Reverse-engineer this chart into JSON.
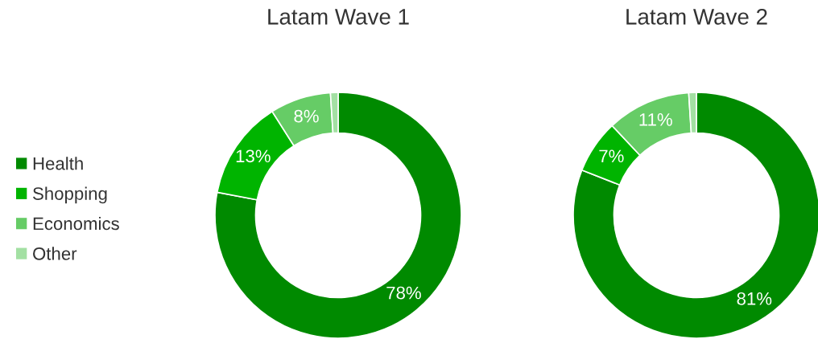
{
  "chart_data": [
    {
      "type": "donut",
      "title": "Latam Wave 1",
      "categories": [
        "Health",
        "Shopping",
        "Economics",
        "Other"
      ],
      "values": [
        78,
        13,
        8,
        1
      ],
      "value_labels": [
        "78%",
        "13%",
        "8%",
        null
      ],
      "colors": [
        "#008a00",
        "#00b400",
        "#66cc66",
        "#a3e0a3"
      ],
      "legend": "left"
    },
    {
      "type": "donut",
      "title": "Latam Wave 2",
      "categories": [
        null,
        null,
        null,
        null
      ],
      "values": [
        81,
        7,
        11,
        1
      ],
      "value_labels": [
        "81%",
        "7%",
        "11%",
        null
      ],
      "colors": [
        "#008a00",
        "#00b400",
        "#66cc66",
        "#a3e0a3"
      ]
    }
  ]
}
